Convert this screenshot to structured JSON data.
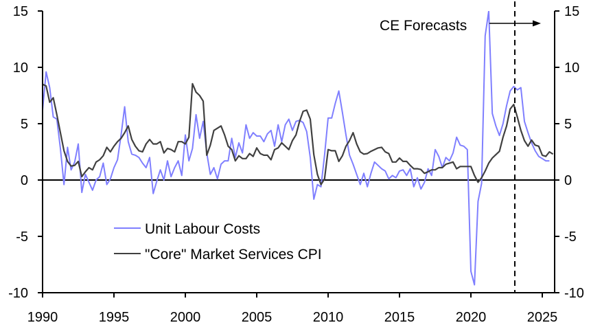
{
  "chart_data": {
    "type": "line",
    "title": "",
    "xlabel": "",
    "ylabel": "",
    "xlim": [
      1990,
      2026.5
    ],
    "ylim": [
      -10,
      15
    ],
    "x_ticks": [
      "1990",
      "1995",
      "2000",
      "2005",
      "2010",
      "2015",
      "2020",
      "2025"
    ],
    "x_tick_values": [
      1990,
      1995,
      2000,
      2005,
      2010,
      2015,
      2020,
      2025
    ],
    "y_ticks_left": [
      "15",
      "10",
      "5",
      "0",
      "-5",
      "-10"
    ],
    "y_ticks_right": [
      "15",
      "10",
      "5",
      "0",
      "-5",
      "-10"
    ],
    "y_tick_values": [
      15,
      10,
      5,
      0,
      -5,
      -10
    ],
    "x_start": 1990,
    "x_step": 0.25,
    "forecast_start": 2023.0,
    "annotation": "CE Forecasts",
    "legend_position": "lower-left",
    "grid": false,
    "series": [
      {
        "name": "Unit Labour Costs",
        "color": "#7f7fff",
        "values": [
          6.2,
          9.6,
          8.2,
          5.6,
          5.4,
          2.8,
          -0.4,
          2.9,
          0.9,
          1.6,
          3.2,
          -1.1,
          0.5,
          -0.2,
          -0.9,
          0.0,
          0.3,
          1.5,
          -0.4,
          0.1,
          1.1,
          1.8,
          4.0,
          6.5,
          3.4,
          2.3,
          2.2,
          2.0,
          1.5,
          1.1,
          2.0,
          -1.2,
          -0.1,
          0.9,
          0.0,
          1.7,
          0.3,
          1.1,
          1.7,
          0.4,
          4.0,
          1.7,
          2.8,
          5.8,
          3.7,
          5.2,
          2.4,
          0.5,
          1.1,
          0.1,
          1.4,
          1.7,
          1.7,
          3.7,
          2.0,
          3.3,
          2.4,
          4.9,
          3.7,
          4.2,
          3.9,
          3.9,
          3.4,
          4.1,
          4.4,
          3.0,
          4.9,
          3.4,
          4.9,
          5.4,
          4.4,
          5.2,
          5.3,
          5.1,
          4.3,
          2.0,
          -1.7,
          -0.4,
          -0.6,
          2.2,
          5.5,
          5.5,
          6.8,
          7.9,
          6.0,
          4.0,
          2.2,
          1.4,
          0.5,
          -0.4,
          0.6,
          -0.6,
          0.6,
          1.6,
          1.3,
          1.0,
          0.8,
          0.1,
          0.4,
          0.2,
          0.8,
          0.9,
          0.4,
          1.0,
          -0.6,
          0.2,
          -0.8,
          -0.2,
          1.0,
          0.4,
          2.7,
          2.1,
          1.1,
          2.0,
          1.7,
          2.4,
          3.8,
          3.1,
          3.0,
          2.7,
          -8.1,
          -9.3,
          -1.9,
          -0.3,
          12.8,
          15.0,
          5.9,
          4.8,
          3.95,
          5.0,
          6.6,
          7.9,
          8.3,
          8.0,
          8.2,
          5.2,
          4.2,
          3.3,
          2.6,
          2.1,
          1.9,
          1.7,
          1.7
        ]
      },
      {
        "name": "\"Core\" Market Services CPI",
        "color": "#404040",
        "values": [
          8.5,
          8.35,
          6.9,
          7.3,
          5.8,
          4.2,
          2.6,
          1.65,
          1.24,
          1.3,
          1.65,
          0.3,
          0.73,
          1.1,
          0.9,
          1.6,
          1.8,
          2.15,
          2.9,
          2.5,
          3.0,
          3.4,
          3.7,
          4.2,
          4.8,
          3.6,
          3.0,
          2.6,
          2.5,
          3.2,
          3.6,
          3.2,
          3.2,
          3.4,
          2.4,
          2.8,
          2.7,
          2.5,
          3.4,
          3.4,
          3.2,
          3.8,
          8.55,
          7.8,
          7.5,
          7.0,
          2.2,
          3.1,
          4.4,
          4.6,
          4.8,
          4.0,
          3.0,
          2.7,
          1.7,
          2.15,
          1.9,
          1.9,
          2.35,
          2.1,
          2.85,
          2.35,
          2.2,
          2.2,
          1.8,
          2.7,
          2.85,
          3.3,
          3.0,
          2.7,
          3.5,
          4.0,
          5.2,
          6.1,
          6.2,
          5.4,
          2.25,
          0.5,
          -0.4,
          0.1,
          2.7,
          2.6,
          2.6,
          1.65,
          2.15,
          3.0,
          3.5,
          4.2,
          3.2,
          2.5,
          2.3,
          2.35,
          2.55,
          2.7,
          2.85,
          2.9,
          2.5,
          2.35,
          1.6,
          1.6,
          1.95,
          1.65,
          1.65,
          1.3,
          1.0,
          1.0,
          0.93,
          0.6,
          0.73,
          0.9,
          0.9,
          1.1,
          1.1,
          1.4,
          1.5,
          1.6,
          1.0,
          1.2,
          1.2,
          1.2,
          1.2,
          0.4,
          -0.2,
          0.2,
          0.8,
          1.5,
          1.95,
          2.25,
          2.55,
          3.8,
          4.8,
          6.3,
          6.7,
          5.6,
          4.4,
          3.5,
          3.0,
          3.55,
          3.1,
          3.0,
          2.2,
          2.1,
          2.5,
          2.3
        ]
      }
    ]
  }
}
